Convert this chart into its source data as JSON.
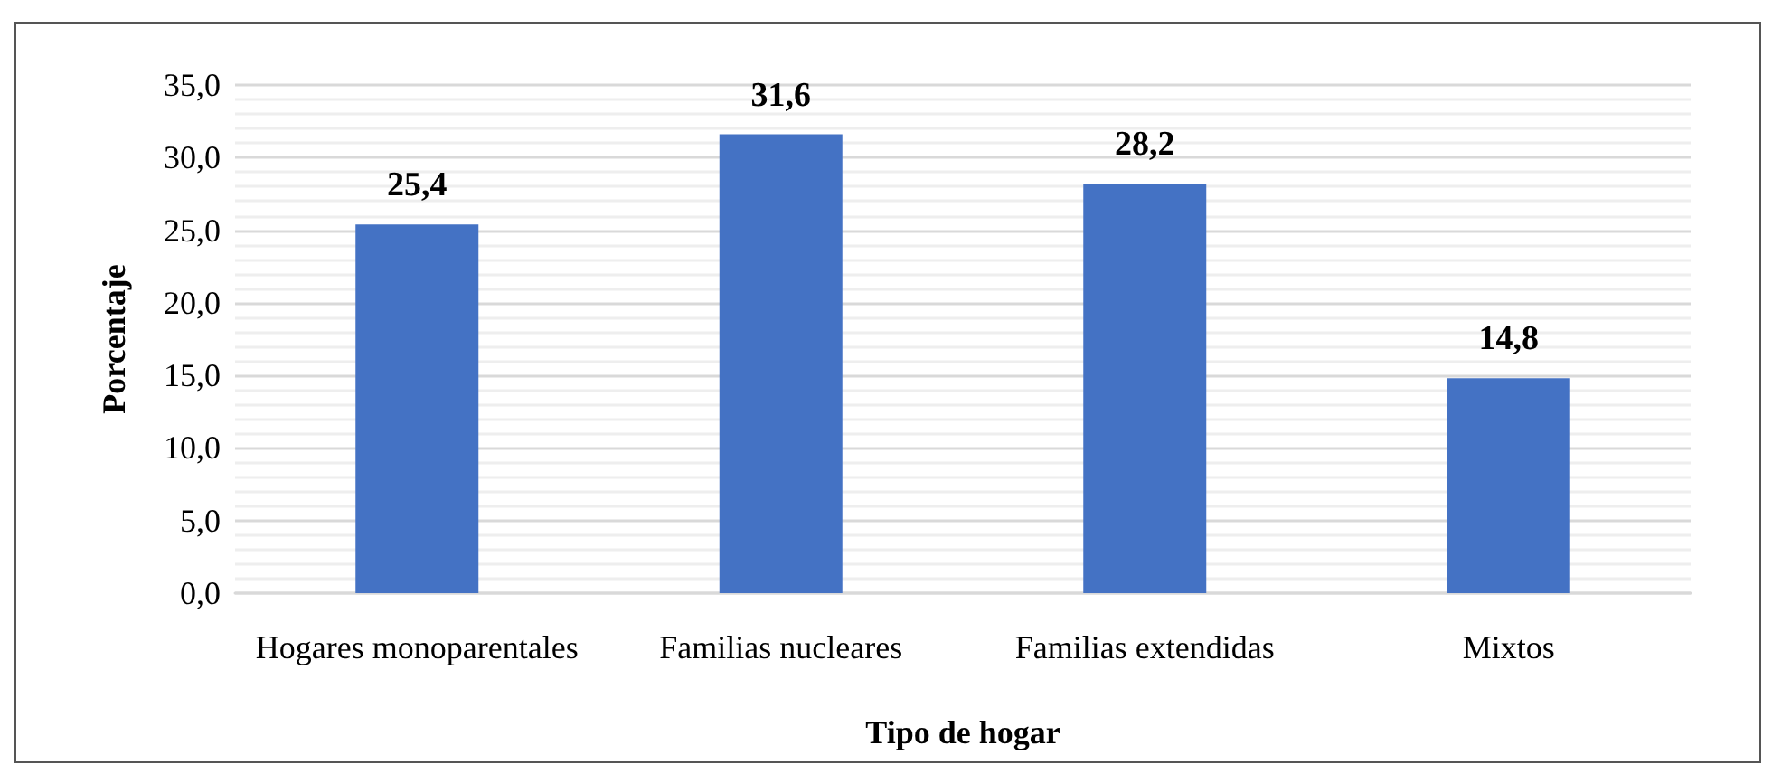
{
  "chart_data": {
    "type": "bar",
    "xlabel": "Tipo de hogar",
    "ylabel": "Porcentaje",
    "categories": [
      "Hogares monoparentales",
      "Familias nucleares",
      "Familias extendidas",
      "Mixtos"
    ],
    "values": [
      25.4,
      31.6,
      28.2,
      14.8
    ],
    "color": "#4472c4",
    "value_labels": [
      "25,4",
      "31,6",
      "28,2",
      "14,8"
    ],
    "ylim": [
      0,
      35
    ],
    "yticks": [
      {
        "value": 0,
        "label": "0,0"
      },
      {
        "value": 5,
        "label": "5,0"
      },
      {
        "value": 10,
        "label": "10,0"
      },
      {
        "value": 15,
        "label": "15,0"
      },
      {
        "value": 20,
        "label": "20,0"
      },
      {
        "value": 25,
        "label": "25,0"
      },
      {
        "value": 30,
        "label": "30,0"
      },
      {
        "value": 35,
        "label": "35,0"
      }
    ],
    "grid": true
  }
}
